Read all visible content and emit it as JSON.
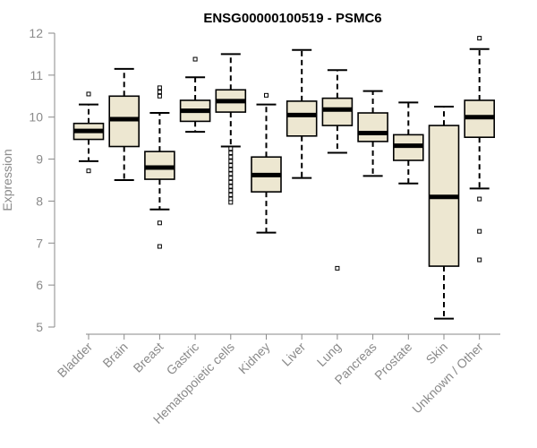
{
  "chart_data": {
    "type": "box",
    "title": "ENSG00000100519 - PSMC6",
    "ylabel": "Expression",
    "ylim": [
      5,
      12
    ],
    "yticks": [
      "5",
      "6",
      "7",
      "8",
      "9",
      "10",
      "11",
      "12"
    ],
    "grid": false,
    "colors": {
      "box_fill": "#ede7d1",
      "box_stroke": "#000000",
      "axis": "#8a8a8a",
      "text": "#8a8a8a"
    },
    "categories": [
      "Bladder",
      "Brain",
      "Breast",
      "Gastric",
      "Hematopoietic cells",
      "Kidney",
      "Liver",
      "Lung",
      "Pancreas",
      "Prostate",
      "Skin",
      "Unknown / Other"
    ],
    "boxes": [
      {
        "category": "Bladder",
        "whisker_low": 8.95,
        "q1": 9.47,
        "median": 9.67,
        "q3": 9.85,
        "whisker_high": 10.3,
        "outliers": [
          10.55,
          8.72
        ]
      },
      {
        "category": "Brain",
        "whisker_low": 8.5,
        "q1": 9.3,
        "median": 9.95,
        "q3": 10.5,
        "whisker_high": 11.15,
        "outliers": []
      },
      {
        "category": "Breast",
        "whisker_low": 7.8,
        "q1": 8.52,
        "median": 8.8,
        "q3": 9.18,
        "whisker_high": 10.1,
        "outliers": [
          10.7,
          10.6,
          10.5,
          7.48,
          6.92
        ]
      },
      {
        "category": "Gastric",
        "whisker_low": 9.65,
        "q1": 9.9,
        "median": 10.15,
        "q3": 10.4,
        "whisker_high": 10.95,
        "outliers": [
          11.38
        ]
      },
      {
        "category": "Hematopoietic cells",
        "whisker_low": 9.3,
        "q1": 10.12,
        "median": 10.38,
        "q3": 10.65,
        "whisker_high": 11.5,
        "outliers": [
          9.25,
          9.15,
          9.05,
          8.95,
          8.85,
          8.75,
          8.65,
          8.55,
          8.45,
          8.35,
          8.25,
          8.15,
          8.05,
          7.97
        ]
      },
      {
        "category": "Kidney",
        "whisker_low": 7.25,
        "q1": 8.22,
        "median": 8.62,
        "q3": 9.05,
        "whisker_high": 10.3,
        "outliers": [
          10.52
        ]
      },
      {
        "category": "Liver",
        "whisker_low": 8.55,
        "q1": 9.55,
        "median": 10.05,
        "q3": 10.38,
        "whisker_high": 11.6,
        "outliers": []
      },
      {
        "category": "Lung",
        "whisker_low": 9.15,
        "q1": 9.8,
        "median": 10.18,
        "q3": 10.45,
        "whisker_high": 11.12,
        "outliers": [
          6.4
        ]
      },
      {
        "category": "Pancreas",
        "whisker_low": 8.6,
        "q1": 9.42,
        "median": 9.62,
        "q3": 10.1,
        "whisker_high": 10.62,
        "outliers": []
      },
      {
        "category": "Prostate",
        "whisker_low": 8.42,
        "q1": 8.97,
        "median": 9.32,
        "q3": 9.58,
        "whisker_high": 10.35,
        "outliers": []
      },
      {
        "category": "Skin",
        "whisker_low": 5.2,
        "q1": 6.45,
        "median": 8.1,
        "q3": 9.8,
        "whisker_high": 10.25,
        "outliers": []
      },
      {
        "category": "Unknown / Other",
        "whisker_low": 8.3,
        "q1": 9.52,
        "median": 10.0,
        "q3": 10.4,
        "whisker_high": 11.62,
        "outliers": [
          11.88,
          8.05,
          7.28,
          6.6
        ]
      }
    ]
  }
}
